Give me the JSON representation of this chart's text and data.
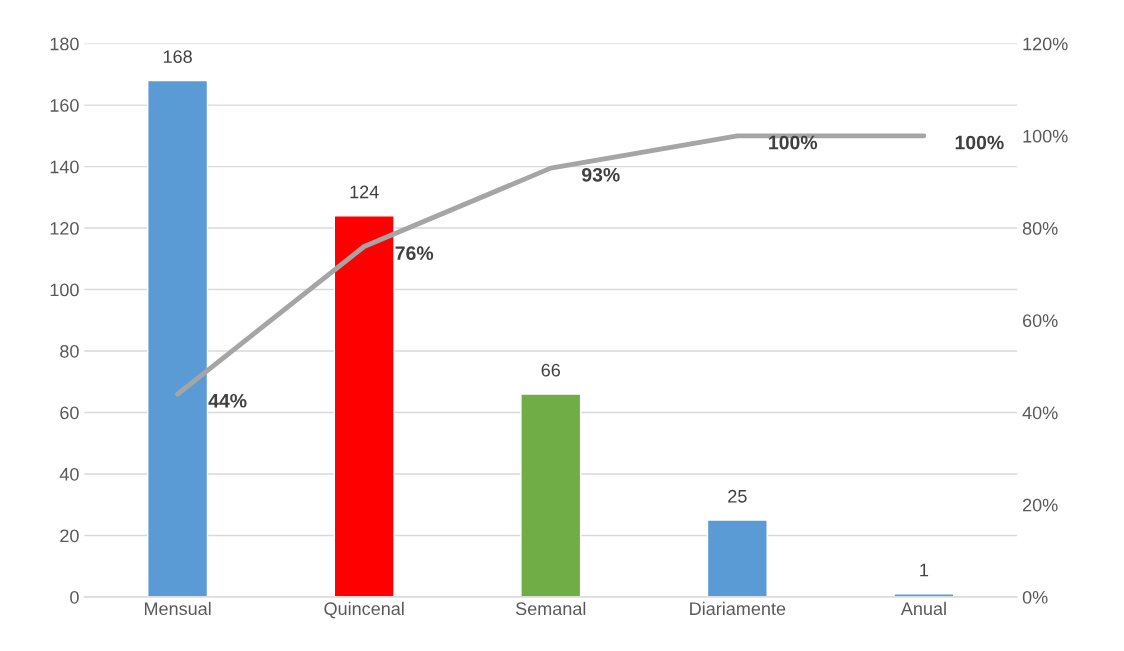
{
  "chart_data": {
    "type": "bar",
    "categories": [
      "Mensual",
      "Quincenal",
      "Semanal",
      "Diariamente",
      "Anual"
    ],
    "series": [
      {
        "colors": [
          "#5b9bd5",
          "#ff0000",
          "#70ad47",
          "#5b9bd5",
          "#5b9bd5"
        ],
        "values": [
          168,
          124,
          66,
          25,
          1
        ],
        "value_labels": [
          "168",
          "124",
          "66",
          "25",
          "1"
        ]
      },
      {
        "type": "line",
        "axis": "y2",
        "color": "#a5a5a5",
        "values": [
          44,
          76,
          93,
          100,
          100
        ],
        "value_labels": [
          "44%",
          "76%",
          "93%",
          "100%",
          "100%"
        ]
      }
    ],
    "ylim": [
      0,
      180
    ],
    "yticks": [
      0,
      20,
      40,
      60,
      80,
      100,
      120,
      140,
      160,
      180
    ],
    "y2lim": [
      0,
      120
    ],
    "y2ticks": [
      {
        "value": 0,
        "label": "0%"
      },
      {
        "value": 20,
        "label": "20%"
      },
      {
        "value": 40,
        "label": "40%"
      },
      {
        "value": 60,
        "label": "60%"
      },
      {
        "value": 80,
        "label": "80%"
      },
      {
        "value": 100,
        "label": "100%"
      },
      {
        "value": 120,
        "label": "120%"
      }
    ],
    "grid": "y",
    "legend": false,
    "marker": "none",
    "line_style": "solid"
  }
}
